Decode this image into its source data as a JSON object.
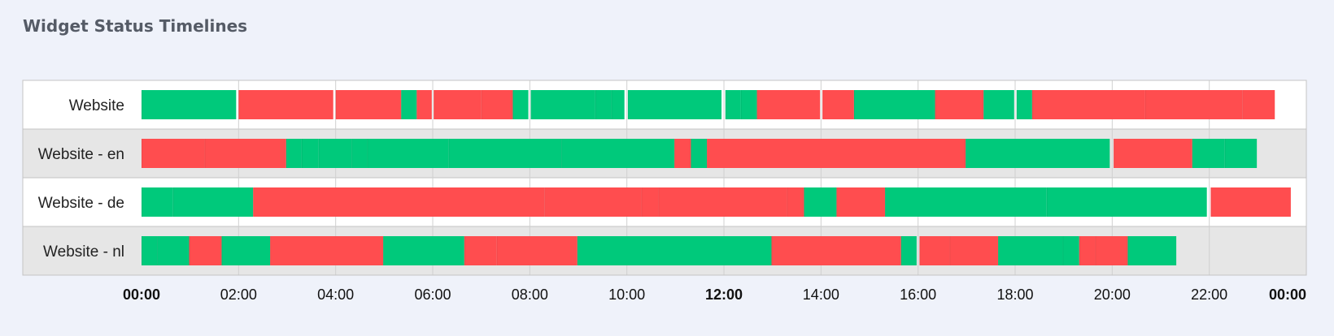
{
  "title": "Widget Status Timelines",
  "colors": {
    "up": "#00c97b",
    "down": "#ff4d4f",
    "row_odd": "#ffffff",
    "row_even": "#e6e6e6",
    "grid": "#d0d0d0"
  },
  "chart_data": {
    "type": "timeline",
    "title": "Widget Status Timelines",
    "x_range_hours": [
      0,
      24
    ],
    "x_ticks": [
      {
        "hour": 0,
        "label": "00:00",
        "bold": true
      },
      {
        "hour": 2,
        "label": "02:00",
        "bold": false
      },
      {
        "hour": 4,
        "label": "04:00",
        "bold": false
      },
      {
        "hour": 6,
        "label": "06:00",
        "bold": false
      },
      {
        "hour": 8,
        "label": "08:00",
        "bold": false
      },
      {
        "hour": 10,
        "label": "10:00",
        "bold": false
      },
      {
        "hour": 12,
        "label": "12:00",
        "bold": true
      },
      {
        "hour": 14,
        "label": "14:00",
        "bold": false
      },
      {
        "hour": 16,
        "label": "16:00",
        "bold": false
      },
      {
        "hour": 18,
        "label": "18:00",
        "bold": false
      },
      {
        "hour": 20,
        "label": "20:00",
        "bold": false
      },
      {
        "hour": 22,
        "label": "22:00",
        "bold": false
      },
      {
        "hour": 24,
        "label": "00:00",
        "bold": true
      }
    ],
    "rows": [
      {
        "name": "Website",
        "segments": [
          {
            "start": 0.0,
            "end": 1.95,
            "status": "up"
          },
          {
            "start": 2.0,
            "end": 3.95,
            "status": "down"
          },
          {
            "start": 4.0,
            "end": 5.35,
            "status": "down"
          },
          {
            "start": 5.35,
            "end": 5.67,
            "status": "up"
          },
          {
            "start": 5.67,
            "end": 5.98,
            "status": "down"
          },
          {
            "start": 6.02,
            "end": 7.0,
            "status": "down"
          },
          {
            "start": 7.0,
            "end": 7.65,
            "status": "down"
          },
          {
            "start": 7.65,
            "end": 7.97,
            "status": "up"
          },
          {
            "start": 8.02,
            "end": 9.35,
            "status": "up"
          },
          {
            "start": 9.35,
            "end": 9.68,
            "status": "up"
          },
          {
            "start": 9.68,
            "end": 9.95,
            "status": "up"
          },
          {
            "start": 10.02,
            "end": 11.95,
            "status": "up"
          },
          {
            "start": 12.03,
            "end": 12.35,
            "status": "up"
          },
          {
            "start": 12.35,
            "end": 12.68,
            "status": "up"
          },
          {
            "start": 12.68,
            "end": 13.98,
            "status": "down"
          },
          {
            "start": 14.03,
            "end": 14.68,
            "status": "down"
          },
          {
            "start": 14.68,
            "end": 16.35,
            "status": "up"
          },
          {
            "start": 16.35,
            "end": 17.35,
            "status": "down"
          },
          {
            "start": 17.35,
            "end": 17.98,
            "status": "up"
          },
          {
            "start": 18.03,
            "end": 18.35,
            "status": "up"
          },
          {
            "start": 18.35,
            "end": 20.68,
            "status": "down"
          },
          {
            "start": 20.68,
            "end": 22.68,
            "status": "down"
          },
          {
            "start": 22.68,
            "end": 23.35,
            "status": "down"
          }
        ]
      },
      {
        "name": "Website - en",
        "segments": [
          {
            "start": 0.0,
            "end": 1.3,
            "status": "down"
          },
          {
            "start": 1.3,
            "end": 2.98,
            "status": "down"
          },
          {
            "start": 2.98,
            "end": 3.3,
            "status": "up"
          },
          {
            "start": 3.3,
            "end": 3.65,
            "status": "up"
          },
          {
            "start": 3.65,
            "end": 4.33,
            "status": "up"
          },
          {
            "start": 4.33,
            "end": 4.65,
            "status": "up"
          },
          {
            "start": 4.65,
            "end": 6.33,
            "status": "up"
          },
          {
            "start": 6.33,
            "end": 8.65,
            "status": "up"
          },
          {
            "start": 8.65,
            "end": 10.98,
            "status": "up"
          },
          {
            "start": 10.98,
            "end": 11.32,
            "status": "down"
          },
          {
            "start": 11.32,
            "end": 11.65,
            "status": "up"
          },
          {
            "start": 11.65,
            "end": 16.98,
            "status": "down"
          },
          {
            "start": 16.98,
            "end": 19.95,
            "status": "up"
          },
          {
            "start": 20.03,
            "end": 21.65,
            "status": "down"
          },
          {
            "start": 21.65,
            "end": 22.32,
            "status": "up"
          },
          {
            "start": 22.32,
            "end": 22.98,
            "status": "up"
          }
        ]
      },
      {
        "name": "Website - de",
        "segments": [
          {
            "start": 0.0,
            "end": 0.65,
            "status": "up"
          },
          {
            "start": 0.65,
            "end": 2.3,
            "status": "up"
          },
          {
            "start": 2.3,
            "end": 8.3,
            "status": "down"
          },
          {
            "start": 8.3,
            "end": 10.3,
            "status": "down"
          },
          {
            "start": 10.3,
            "end": 10.65,
            "status": "down"
          },
          {
            "start": 10.65,
            "end": 13.3,
            "status": "down"
          },
          {
            "start": 13.3,
            "end": 13.65,
            "status": "down"
          },
          {
            "start": 13.65,
            "end": 14.32,
            "status": "up"
          },
          {
            "start": 14.32,
            "end": 15.32,
            "status": "down"
          },
          {
            "start": 15.32,
            "end": 18.65,
            "status": "up"
          },
          {
            "start": 18.65,
            "end": 21.95,
            "status": "up"
          },
          {
            "start": 22.03,
            "end": 23.68,
            "status": "down"
          }
        ]
      },
      {
        "name": "Website - nl",
        "segments": [
          {
            "start": 0.0,
            "end": 0.32,
            "status": "up"
          },
          {
            "start": 0.32,
            "end": 0.98,
            "status": "up"
          },
          {
            "start": 0.98,
            "end": 1.65,
            "status": "down"
          },
          {
            "start": 1.65,
            "end": 2.65,
            "status": "up"
          },
          {
            "start": 2.65,
            "end": 4.98,
            "status": "down"
          },
          {
            "start": 4.98,
            "end": 6.65,
            "status": "up"
          },
          {
            "start": 6.65,
            "end": 7.32,
            "status": "down"
          },
          {
            "start": 7.32,
            "end": 8.98,
            "status": "down"
          },
          {
            "start": 8.98,
            "end": 12.98,
            "status": "up"
          },
          {
            "start": 12.98,
            "end": 15.65,
            "status": "down"
          },
          {
            "start": 15.65,
            "end": 15.97,
            "status": "up"
          },
          {
            "start": 16.03,
            "end": 16.65,
            "status": "down"
          },
          {
            "start": 16.65,
            "end": 17.65,
            "status": "down"
          },
          {
            "start": 17.65,
            "end": 18.98,
            "status": "up"
          },
          {
            "start": 18.98,
            "end": 19.32,
            "status": "up"
          },
          {
            "start": 19.32,
            "end": 19.65,
            "status": "down"
          },
          {
            "start": 19.65,
            "end": 20.32,
            "status": "down"
          },
          {
            "start": 20.32,
            "end": 21.32,
            "status": "up"
          }
        ]
      }
    ]
  }
}
